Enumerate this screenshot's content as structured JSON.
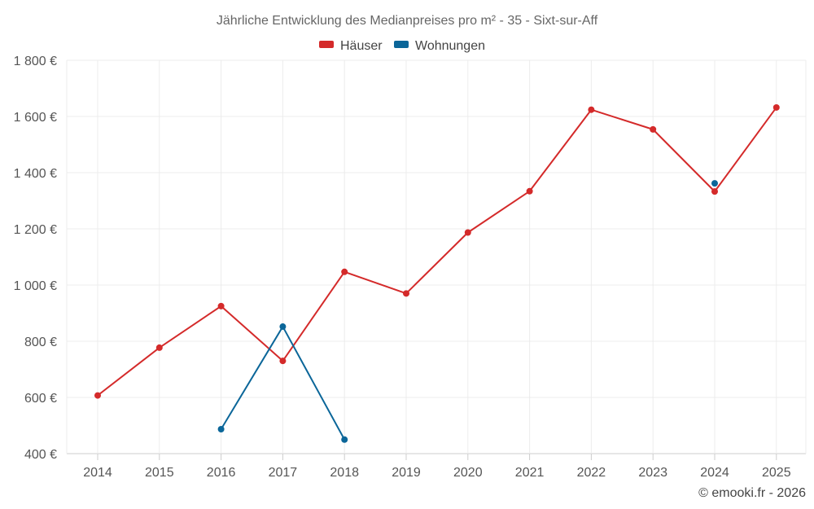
{
  "chart_data": {
    "type": "line",
    "title": "Jährliche Entwicklung des Medianpreises pro m² - 35 - Sixt-sur-Aff",
    "categories": [
      "2014",
      "2015",
      "2016",
      "2017",
      "2018",
      "2019",
      "2020",
      "2021",
      "2022",
      "2023",
      "2024",
      "2025"
    ],
    "ylim": [
      400,
      1800
    ],
    "yticks": [
      400,
      600,
      800,
      1000,
      1200,
      1400,
      1600,
      1800
    ],
    "ytick_labels": [
      "400 €",
      "600 €",
      "800 €",
      "1 000 €",
      "1 200 €",
      "1 400 €",
      "1 600 €",
      "1 800 €"
    ],
    "xlabel": "",
    "ylabel": "",
    "grid": true,
    "legend_position": "top-center",
    "series": [
      {
        "name": "Häuser",
        "color": "#d42a2a",
        "values": [
          607,
          777,
          925,
          730,
          1047,
          970,
          1187,
          1334,
          1624,
          1554,
          1333,
          1632
        ]
      },
      {
        "name": "Wohnungen",
        "color": "#0b6699",
        "values": [
          null,
          null,
          487,
          852,
          450,
          null,
          null,
          null,
          null,
          null,
          1362,
          null
        ]
      }
    ]
  },
  "credit": "© emooki.fr - 2026"
}
